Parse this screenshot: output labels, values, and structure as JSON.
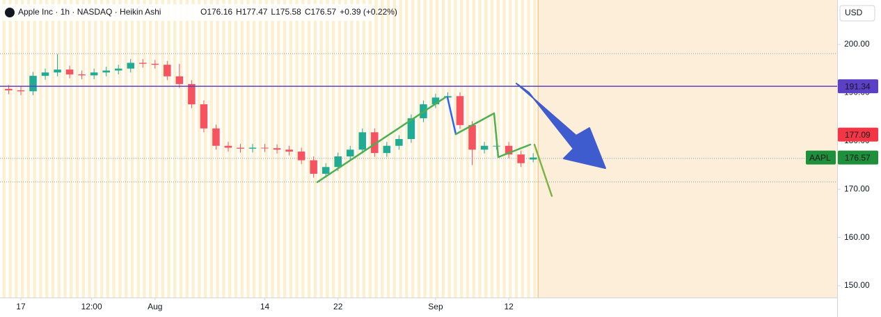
{
  "chart_data": {
    "type": "candlestick",
    "title": "Apple Inc · 1h · NASDAQ · Heikin Ashi",
    "ohlc_legend": [
      "O176.16",
      "H177.47",
      "L175.58",
      "C176.57",
      "+0.39 (+0.22%)"
    ],
    "currency": "USD",
    "x": [
      -1,
      0,
      1,
      2,
      3,
      4,
      5,
      6,
      7,
      8,
      9,
      10,
      11,
      12,
      13,
      14,
      15,
      16,
      17,
      18,
      19,
      20,
      21,
      22,
      23,
      24,
      25,
      26,
      27,
      28,
      29,
      30,
      31,
      32,
      33,
      34,
      35,
      36,
      37,
      38,
      39,
      40,
      41,
      42
    ],
    "open": [
      190.8,
      190.5,
      190.3,
      193.5,
      194.2,
      194.8,
      193.8,
      193.6,
      194.2,
      194.6,
      195.0,
      196.2,
      196.0,
      195.8,
      193.4,
      191.8,
      187.6,
      182.6,
      179.0,
      178.6,
      178.4,
      178.6,
      178.5,
      178.2,
      177.8,
      176.0,
      173.2,
      174.6,
      176.8,
      178.2,
      181.8,
      177.5,
      179.0,
      180.4,
      184.7,
      187.6,
      189.0,
      189.3,
      183.3,
      178.2,
      179.0,
      179.0,
      177.2,
      176.16
    ],
    "high": [
      191.6,
      191.3,
      194.3,
      195.0,
      198.0,
      195.6,
      194.6,
      195.0,
      195.4,
      195.8,
      197.0,
      197.0,
      196.8,
      196.6,
      196.0,
      192.6,
      188.4,
      183.4,
      179.8,
      179.4,
      179.4,
      179.4,
      179.3,
      179.0,
      178.6,
      176.8,
      175.4,
      177.6,
      179.0,
      182.6,
      182.6,
      179.8,
      181.2,
      185.5,
      188.4,
      189.8,
      190.1,
      190.1,
      184.1,
      179.8,
      179.8,
      179.8,
      178.0,
      177.47
    ],
    "low": [
      189.7,
      189.5,
      189.5,
      192.7,
      193.4,
      193.0,
      192.8,
      192.8,
      193.4,
      193.8,
      194.2,
      195.2,
      195.0,
      192.6,
      191.0,
      186.8,
      181.8,
      178.2,
      177.8,
      177.6,
      177.6,
      177.7,
      177.4,
      177.0,
      175.2,
      172.4,
      172.4,
      173.8,
      176.0,
      177.4,
      176.7,
      176.7,
      178.2,
      179.6,
      183.9,
      186.8,
      188.2,
      182.5,
      175.0,
      177.4,
      178.2,
      176.4,
      174.6,
      175.58
    ],
    "close": [
      190.5,
      190.3,
      193.5,
      194.2,
      194.8,
      193.8,
      193.6,
      194.2,
      194.6,
      195.0,
      196.2,
      196.0,
      195.8,
      193.4,
      191.8,
      187.6,
      182.6,
      179.0,
      178.6,
      178.4,
      178.6,
      178.5,
      178.2,
      177.8,
      176.0,
      173.2,
      174.6,
      176.8,
      178.2,
      181.8,
      177.5,
      179.0,
      180.4,
      184.7,
      187.6,
      189.0,
      189.3,
      183.3,
      178.2,
      179.0,
      179.0,
      177.2,
      175.4,
      176.57
    ],
    "up_color": "#22ab94",
    "down_color": "#f7525f",
    "xlim": [
      -1.71,
      66.92
    ],
    "ylim": [
      147.55,
      209.22
    ],
    "xticks": [
      {
        "value": 0,
        "label": "17"
      },
      {
        "value": 5.8,
        "label": "12:00"
      },
      {
        "value": 11,
        "label": "Aug"
      },
      {
        "value": 20,
        "label": "14"
      },
      {
        "value": 26,
        "label": "22"
      },
      {
        "value": 34,
        "label": "Sep"
      },
      {
        "value": 40,
        "label": "12"
      }
    ],
    "yticks": [
      {
        "value": 150,
        "label": "150.00"
      },
      {
        "value": 160,
        "label": "160.00"
      },
      {
        "value": 170,
        "label": "170.00"
      },
      {
        "value": 180,
        "label": "180.00"
      },
      {
        "value": 190,
        "label": "190.00"
      },
      {
        "value": 200,
        "label": "200.00"
      }
    ],
    "dotted_levels": [
      198.1,
      176.4,
      171.5
    ],
    "price_tags": [
      {
        "value": 191.34,
        "label": "191.34",
        "color": "#5b3fc4"
      },
      {
        "value": 177.09,
        "label": "177.09",
        "color": "#f23645"
      },
      {
        "value": 176.57,
        "label": "176.57",
        "color": "#1e8f3a",
        "symbol": "AAPL"
      }
    ]
  }
}
